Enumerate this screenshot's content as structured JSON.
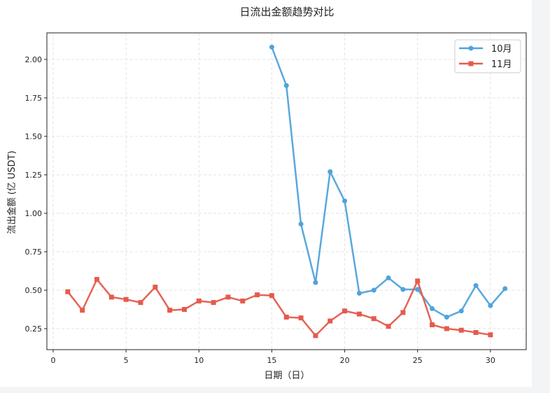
{
  "chart_data": {
    "type": "line",
    "title": "日流出金额趋势对比",
    "xlabel": "日期（日）",
    "ylabel": "流出金额 (亿 USDT)",
    "xlim": [
      -0.5,
      32.5
    ],
    "ylim": [
      0.11,
      2.18
    ],
    "xticks": [
      0,
      5,
      10,
      15,
      20,
      25,
      30
    ],
    "yticks": [
      "0.25",
      "0.50",
      "0.75",
      "1.00",
      "1.25",
      "1.50",
      "1.75",
      "2.00"
    ],
    "grid": true,
    "legend_position": "top-right",
    "series": [
      {
        "name": "10月",
        "color": "#4fa3dc",
        "marker": "circle",
        "x": [
          15,
          16,
          17,
          18,
          19,
          20,
          21,
          22,
          23,
          24,
          25,
          26,
          27,
          28,
          29,
          30,
          31
        ],
        "y": [
          2.08,
          1.83,
          0.93,
          0.55,
          1.27,
          1.08,
          0.48,
          0.5,
          0.58,
          0.505,
          0.505,
          0.38,
          0.325,
          0.365,
          0.53,
          0.4,
          0.51
        ]
      },
      {
        "name": "11月",
        "color": "#e55b4d",
        "marker": "square",
        "x": [
          1,
          2,
          3,
          4,
          5,
          6,
          7,
          8,
          9,
          10,
          11,
          12,
          13,
          14,
          15,
          16,
          17,
          18,
          19,
          20,
          21,
          22,
          23,
          24,
          25,
          26,
          27,
          28,
          29,
          30
        ],
        "y": [
          0.49,
          0.37,
          0.57,
          0.455,
          0.44,
          0.42,
          0.52,
          0.37,
          0.375,
          0.43,
          0.42,
          0.455,
          0.43,
          0.47,
          0.465,
          0.325,
          0.32,
          0.205,
          0.3,
          0.365,
          0.345,
          0.315,
          0.265,
          0.355,
          0.56,
          0.275,
          0.25,
          0.24,
          0.225,
          0.21
        ]
      }
    ]
  }
}
